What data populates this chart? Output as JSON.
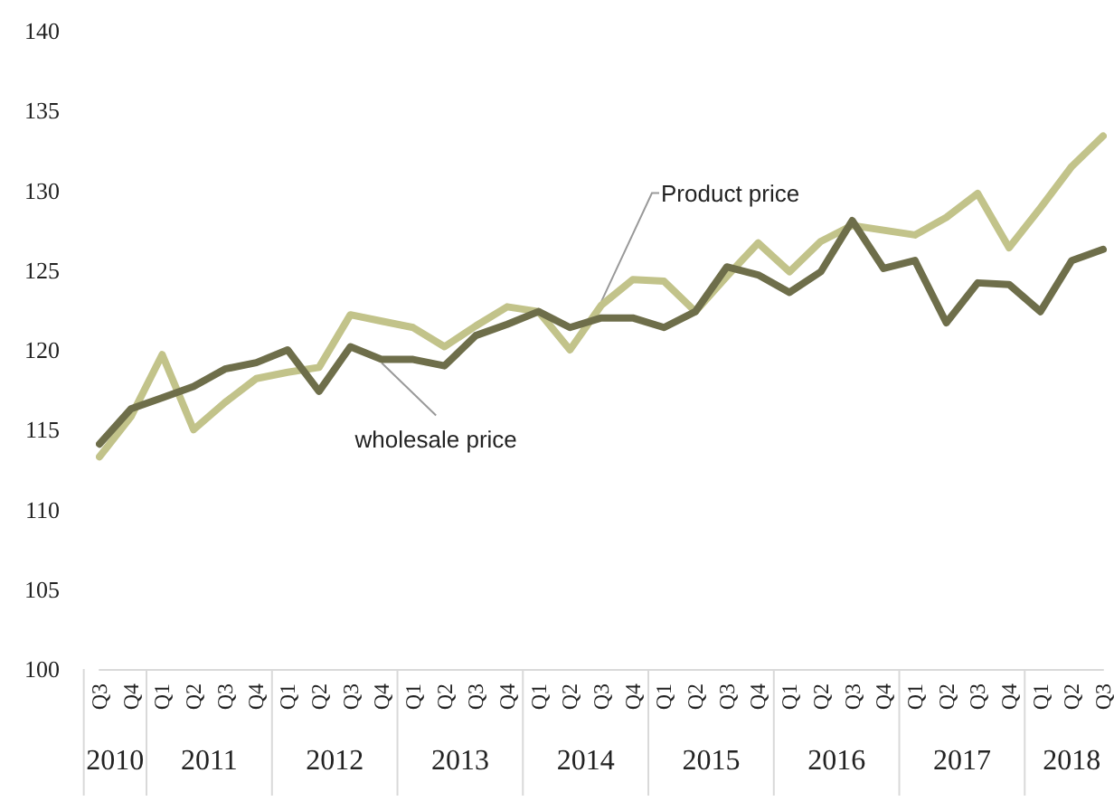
{
  "chart_data": {
    "type": "line",
    "categories": [
      "Q3",
      "Q4",
      "Q1",
      "Q2",
      "Q3",
      "Q4",
      "Q1",
      "Q2",
      "Q3",
      "Q4",
      "Q1",
      "Q2",
      "Q3",
      "Q4",
      "Q1",
      "Q2",
      "Q3",
      "Q4",
      "Q1",
      "Q2",
      "Q3",
      "Q4",
      "Q1",
      "Q2",
      "Q3",
      "Q4",
      "Q1",
      "Q2",
      "Q3",
      "Q4",
      "Q1",
      "Q2",
      "Q3"
    ],
    "series": [
      {
        "name": "Product price",
        "color": "#c2c38a",
        "values": [
          113.3,
          115.8,
          119.7,
          115.0,
          116.7,
          118.2,
          118.6,
          118.9,
          122.2,
          121.8,
          121.4,
          120.2,
          121.5,
          122.7,
          122.4,
          120.0,
          122.8,
          124.4,
          124.3,
          122.4,
          124.6,
          126.7,
          124.9,
          126.8,
          127.8,
          127.5,
          127.2,
          128.3,
          129.8,
          126.4,
          128.9,
          131.5,
          133.4
        ]
      },
      {
        "name": "wholesale price",
        "color": "#6e6e4a",
        "values": [
          114.1,
          116.3,
          117.0,
          117.7,
          118.8,
          119.2,
          120.0,
          117.4,
          120.2,
          119.4,
          119.4,
          119.0,
          120.9,
          121.6,
          122.4,
          121.4,
          122.0,
          122.0,
          121.4,
          122.4,
          125.2,
          124.7,
          123.6,
          124.9,
          128.1,
          125.1,
          125.6,
          121.7,
          124.2,
          124.1,
          122.4,
          125.6,
          126.3
        ]
      }
    ],
    "annotations": [
      "2010",
      "2011",
      "2012",
      "2013",
      "2014",
      "2015",
      "2016",
      "2017",
      "2018"
    ],
    "ylim": [
      100,
      140
    ],
    "yticks": [
      100,
      105,
      110,
      115,
      120,
      125,
      130,
      135,
      140
    ],
    "grid": false,
    "legend": false,
    "marker": "none",
    "line_style": "solid"
  }
}
